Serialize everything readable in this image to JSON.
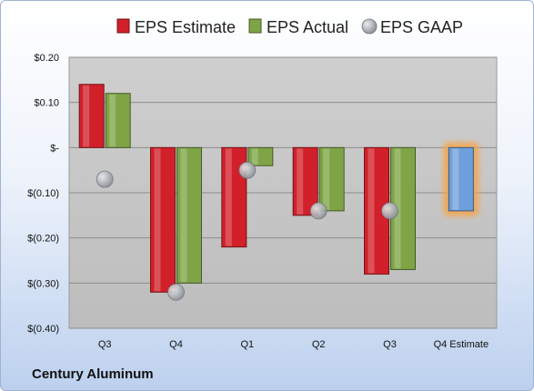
{
  "company": "Century Aluminum",
  "chart_data": {
    "type": "bar",
    "categories": [
      "Q3",
      "Q4",
      "Q1",
      "Q2",
      "Q3",
      "Q4 Estimate"
    ],
    "series": [
      {
        "name": "EPS Estimate",
        "kind": "bar",
        "color": "#d2202a",
        "values": [
          0.14,
          -0.32,
          -0.22,
          -0.15,
          -0.28,
          null
        ]
      },
      {
        "name": "EPS Actual",
        "kind": "bar",
        "color": "#7ea446",
        "values": [
          0.12,
          -0.3,
          -0.04,
          -0.14,
          -0.27,
          null
        ]
      },
      {
        "name": "EPS GAAP",
        "kind": "marker",
        "color": "#9aa0a8",
        "values": [
          -0.07,
          -0.32,
          -0.05,
          -0.14,
          -0.14,
          null
        ]
      },
      {
        "name": "",
        "kind": "bar",
        "color": "#6fa0dc",
        "highlight": "#f5a54a",
        "values": [
          null,
          null,
          null,
          null,
          null,
          -0.14
        ]
      }
    ],
    "yticks": [
      0.2,
      0.1,
      0,
      -0.1,
      -0.2,
      -0.3,
      -0.4
    ],
    "ytick_labels": [
      "$0.20",
      "$0.10",
      "$-",
      "$(0.10)",
      "$(0.20)",
      "$(0.30)",
      "$(0.40)"
    ],
    "ylim": [
      -0.4,
      0.2
    ],
    "grid": true,
    "legend_position": "top"
  }
}
